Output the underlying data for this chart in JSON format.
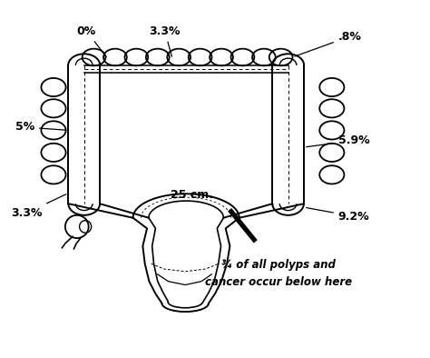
{
  "background_color": "#ffffff",
  "line_color": "#000000",
  "labels": {
    "top_left": "0%",
    "top_center": "3.3%",
    "top_right": ".8%",
    "mid_left": "5%",
    "mid_right": "5.9%",
    "bot_left": "3.3%",
    "bot_right": "9.2%",
    "center_label": "25 cm.",
    "bottom_text1": "¾ of all polyps and",
    "bottom_text2": "cancer occur below here"
  }
}
